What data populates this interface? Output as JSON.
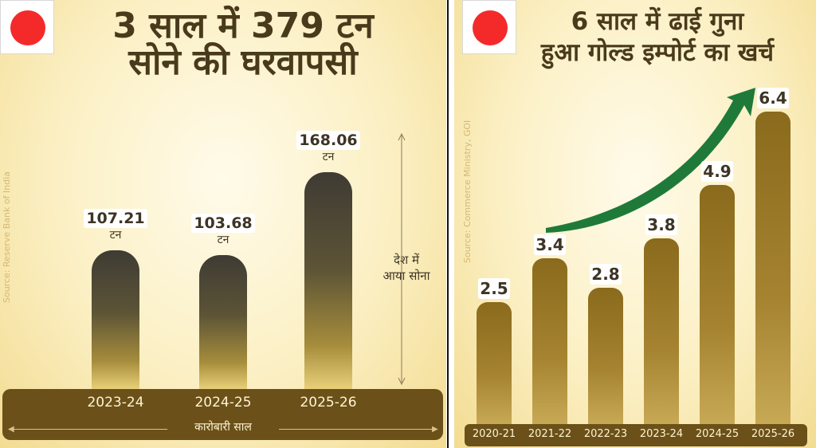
{
  "colors": {
    "flag_dot": "#f42a2a",
    "band": "#6b5019",
    "arrow": "#1f7a3a",
    "title": "#4a3a1c"
  },
  "left": {
    "title_line1": "3 साल में 379 टन",
    "title_line2": "सोने की घरवापसी",
    "source": "Source: Reserve Bank of India",
    "band_label": "कारोबारी साल",
    "range_note_line1": "देश में",
    "range_note_line2": "आया सोना",
    "unit": "टन"
  },
  "right": {
    "title_line1": "6 साल में ढाई गुना",
    "title_line2": "हुआ गोल्ड इम्पोर्ट का खर्च",
    "source": "Source: Commerce Ministry, GOI"
  },
  "chart_data": [
    {
      "type": "bar",
      "title": "3 साल में 379 टन सोने की घरवापसी",
      "categories": [
        "2023-24",
        "2024-25",
        "2025-26"
      ],
      "values": [
        107.21,
        103.68,
        168.06
      ],
      "value_labels": [
        "107.21",
        "103.68",
        "168.06"
      ],
      "unit": "टन",
      "xlabel": "कारोबारी साल",
      "annotation": "देश में आया सोना"
    },
    {
      "type": "bar",
      "title": "6 साल में ढाई गुना हुआ गोल्ड इम्पोर्ट का खर्च",
      "categories": [
        "2020-21",
        "2021-22",
        "2022-23",
        "2023-24",
        "2024-25",
        "2025-26"
      ],
      "values": [
        2.5,
        3.4,
        2.8,
        3.8,
        4.9,
        6.4
      ],
      "value_labels": [
        "2.5",
        "3.4",
        "2.8",
        "3.8",
        "4.9",
        "6.4"
      ]
    }
  ]
}
